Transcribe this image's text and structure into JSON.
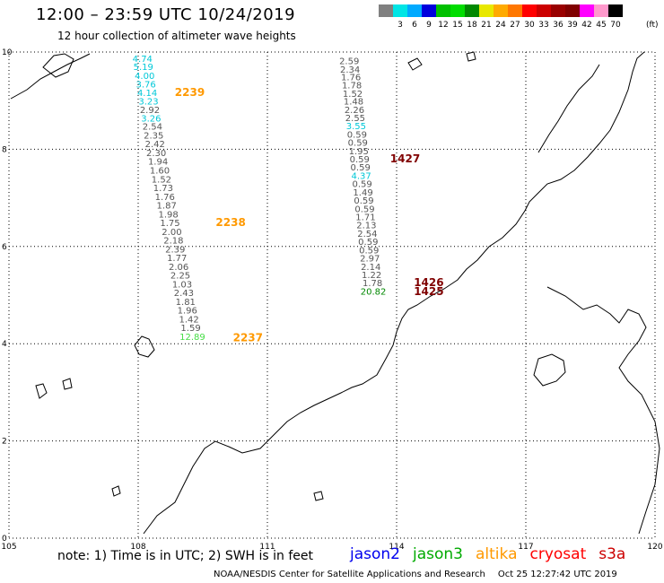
{
  "header": {
    "title": "12:00 – 23:59 UTC 10/24/2019",
    "subtitle": "12 hour collection of altimeter wave heights"
  },
  "scale": {
    "colors": [
      "#808080",
      "#00e5e5",
      "#00aaff",
      "#0000dd",
      "#00c000",
      "#00dd00",
      "#008800",
      "#e8e800",
      "#ffaa00",
      "#ff7700",
      "#ff0000",
      "#cc0000",
      "#990000",
      "#800000",
      "#ff00ff",
      "#ff99cc",
      "#000000"
    ],
    "labels": [
      "",
      "3",
      "6",
      "9",
      "12",
      "15",
      "18",
      "21",
      "24",
      "27",
      "30",
      "33",
      "36",
      "39",
      "42",
      "45",
      "70"
    ],
    "unit": "(ft)"
  },
  "map": {
    "lon_ticks": [
      "105",
      "108",
      "111",
      "114",
      "117",
      "120"
    ],
    "lat_ticks": [
      "0",
      "2",
      "4",
      "6",
      "8",
      "10"
    ],
    "colors": {
      "gray": "#555555",
      "cyan": "#00c8d8",
      "green": "#008800",
      "lgreen": "#44dd44",
      "orange": "#ff9900",
      "maroon": "#800000"
    },
    "tracks": [
      {
        "id": "altika-2239",
        "pass_label": "2239",
        "pass_color": "orange",
        "points": [
          {
            "lon": 108.1,
            "lat": 9.8,
            "value": "4.74",
            "color": "cyan"
          },
          {
            "lon": 108.12,
            "lat": 9.63,
            "value": "5.19",
            "color": "cyan"
          },
          {
            "lon": 108.15,
            "lat": 9.45,
            "value": "4.00",
            "color": "cyan"
          },
          {
            "lon": 108.18,
            "lat": 9.27,
            "value": "3.76",
            "color": "cyan"
          },
          {
            "lon": 108.21,
            "lat": 9.1,
            "value": "4.14",
            "color": "cyan"
          },
          {
            "lon": 108.24,
            "lat": 8.92,
            "value": "3.23",
            "color": "cyan"
          },
          {
            "lon": 108.27,
            "lat": 8.75,
            "value": "2.92",
            "color": "gray"
          },
          {
            "lon": 108.3,
            "lat": 8.57,
            "value": "3.26",
            "color": "cyan"
          },
          {
            "lon": 108.33,
            "lat": 8.4,
            "value": "2.54",
            "color": "gray"
          },
          {
            "lon": 108.36,
            "lat": 8.22,
            "value": "2.35",
            "color": "gray"
          },
          {
            "lon": 108.39,
            "lat": 8.04,
            "value": "2.42",
            "color": "gray"
          },
          {
            "lon": 108.42,
            "lat": 7.86,
            "value": "2.30",
            "color": "gray"
          },
          {
            "lon": 108.46,
            "lat": 7.68,
            "value": "1.94",
            "color": "gray"
          },
          {
            "lon": 108.5,
            "lat": 7.5,
            "value": "1.60",
            "color": "gray"
          },
          {
            "lon": 108.54,
            "lat": 7.32,
            "value": "1.52",
            "color": "gray"
          },
          {
            "lon": 108.58,
            "lat": 7.14,
            "value": "1.73",
            "color": "gray"
          },
          {
            "lon": 108.62,
            "lat": 6.96,
            "value": "1.76",
            "color": "gray"
          },
          {
            "lon": 108.66,
            "lat": 6.78,
            "value": "1.87",
            "color": "gray"
          },
          {
            "lon": 108.7,
            "lat": 6.6,
            "value": "1.98",
            "color": "gray"
          },
          {
            "lon": 108.74,
            "lat": 6.42,
            "value": "1.75",
            "color": "gray"
          },
          {
            "lon": 108.78,
            "lat": 6.24,
            "value": "2.00",
            "color": "gray"
          },
          {
            "lon": 108.82,
            "lat": 6.06,
            "value": "2.18",
            "color": "gray"
          },
          {
            "lon": 108.86,
            "lat": 5.88,
            "value": "2.39",
            "color": "gray"
          },
          {
            "lon": 108.9,
            "lat": 5.7,
            "value": "1.77",
            "color": "gray"
          },
          {
            "lon": 108.94,
            "lat": 5.52,
            "value": "2.06",
            "color": "gray"
          },
          {
            "lon": 108.98,
            "lat": 5.34,
            "value": "2.25",
            "color": "gray"
          },
          {
            "lon": 109.02,
            "lat": 5.16,
            "value": "1.03",
            "color": "gray"
          },
          {
            "lon": 109.06,
            "lat": 4.98,
            "value": "2.43",
            "color": "gray"
          },
          {
            "lon": 109.1,
            "lat": 4.8,
            "value": "1.81",
            "color": "gray"
          },
          {
            "lon": 109.14,
            "lat": 4.62,
            "value": "1.96",
            "color": "gray"
          },
          {
            "lon": 109.18,
            "lat": 4.44,
            "value": "1.42",
            "color": "gray"
          },
          {
            "lon": 109.22,
            "lat": 4.26,
            "value": "1.59",
            "color": "gray"
          },
          {
            "lon": 109.26,
            "lat": 4.08,
            "value": "12.89",
            "color": "lgreen"
          }
        ]
      },
      {
        "id": "cryosat-1427",
        "pass_label": "1427",
        "pass_color": "maroon",
        "points": [
          {
            "lon": 112.9,
            "lat": 9.75,
            "value": "2.59",
            "color": "gray"
          },
          {
            "lon": 112.92,
            "lat": 9.58,
            "value": "2.34",
            "color": "gray"
          },
          {
            "lon": 112.94,
            "lat": 9.42,
            "value": "1.76",
            "color": "gray"
          },
          {
            "lon": 112.96,
            "lat": 9.25,
            "value": "1.78",
            "color": "gray"
          },
          {
            "lon": 112.98,
            "lat": 9.08,
            "value": "1.52",
            "color": "gray"
          },
          {
            "lon": 113.0,
            "lat": 8.92,
            "value": "1.48",
            "color": "gray"
          },
          {
            "lon": 113.02,
            "lat": 8.75,
            "value": "2.26",
            "color": "gray"
          },
          {
            "lon": 113.04,
            "lat": 8.58,
            "value": "2.55",
            "color": "gray"
          },
          {
            "lon": 113.06,
            "lat": 8.41,
            "value": "3.55",
            "color": "cyan"
          },
          {
            "lon": 113.08,
            "lat": 8.24,
            "value": "0.59",
            "color": "gray"
          },
          {
            "lon": 113.1,
            "lat": 8.07,
            "value": "0.59",
            "color": "gray"
          },
          {
            "lon": 113.12,
            "lat": 7.9,
            "value": "1.95",
            "color": "gray"
          },
          {
            "lon": 113.14,
            "lat": 7.73,
            "value": "0.59",
            "color": "gray"
          },
          {
            "lon": 113.16,
            "lat": 7.56,
            "value": "0.59",
            "color": "gray"
          },
          {
            "lon": 113.18,
            "lat": 7.39,
            "value": "4.37",
            "color": "cyan"
          },
          {
            "lon": 113.2,
            "lat": 7.22,
            "value": "0.59",
            "color": "gray"
          },
          {
            "lon": 113.22,
            "lat": 7.05,
            "value": "1.49",
            "color": "gray"
          },
          {
            "lon": 113.24,
            "lat": 6.88,
            "value": "0.59",
            "color": "gray"
          },
          {
            "lon": 113.26,
            "lat": 6.71,
            "value": "0.59",
            "color": "gray"
          },
          {
            "lon": 113.28,
            "lat": 6.54,
            "value": "1.71",
            "color": "gray"
          },
          {
            "lon": 113.3,
            "lat": 6.37,
            "value": "2.13",
            "color": "gray"
          },
          {
            "lon": 113.32,
            "lat": 6.2,
            "value": "2.54",
            "color": "gray"
          },
          {
            "lon": 113.34,
            "lat": 6.03,
            "value": "0.59",
            "color": "gray"
          },
          {
            "lon": 113.36,
            "lat": 5.86,
            "value": "0.59",
            "color": "gray"
          },
          {
            "lon": 113.38,
            "lat": 5.69,
            "value": "2.97",
            "color": "gray"
          },
          {
            "lon": 113.4,
            "lat": 5.52,
            "value": "2.14",
            "color": "gray"
          },
          {
            "lon": 113.42,
            "lat": 5.35,
            "value": "1.22",
            "color": "gray"
          },
          {
            "lon": 113.44,
            "lat": 5.18,
            "value": "1.78",
            "color": "gray"
          },
          {
            "lon": 113.46,
            "lat": 5.01,
            "value": "20.82",
            "color": "green"
          }
        ]
      }
    ],
    "pass_labels": [
      {
        "lon": 108.85,
        "lat": 9.1,
        "text": "2239",
        "color": "orange"
      },
      {
        "lon": 113.85,
        "lat": 7.73,
        "text": "1427",
        "color": "maroon"
      },
      {
        "lon": 109.8,
        "lat": 6.42,
        "text": "2238",
        "color": "orange"
      },
      {
        "lon": 114.4,
        "lat": 5.18,
        "text": "1426",
        "color": "maroon"
      },
      {
        "lon": 114.4,
        "lat": 5.0,
        "text": "1425",
        "color": "maroon"
      },
      {
        "lon": 110.2,
        "lat": 4.05,
        "text": "2237",
        "color": "orange"
      }
    ]
  },
  "footer": {
    "note": "note: 1) Time is in UTC; 2) SWH is in feet",
    "missions": [
      {
        "name": "jason2",
        "color": "#0000ee"
      },
      {
        "name": "jason3",
        "color": "#00aa00"
      },
      {
        "name": "altika",
        "color": "#ff9900"
      },
      {
        "name": "cryosat",
        "color": "#ff0000"
      },
      {
        "name": "s3a",
        "color": "#cc0000"
      }
    ],
    "credit": "NOAA/NESDIS Center for Satellite Applications and Research",
    "timestamp": "Oct 25 12:27:42 UTC 2019"
  }
}
